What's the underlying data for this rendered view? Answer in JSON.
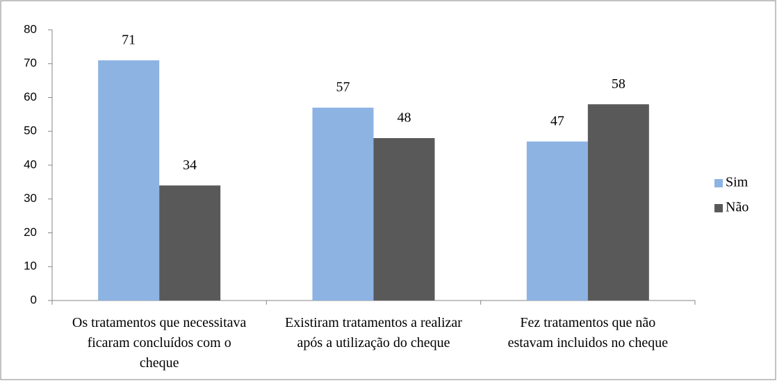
{
  "chart_data": {
    "type": "bar",
    "categories": [
      "Os tratamentos que necessitava ficaram concluídos com o cheque",
      "Existiram tratamentos a realizar após a utilização do cheque",
      "Fez tratamentos que não estavam incluidos no cheque"
    ],
    "series": [
      {
        "name": "Sim",
        "color": "#8db3e2",
        "values": [
          71,
          57,
          47
        ]
      },
      {
        "name": "Não",
        "color": "#595959",
        "values": [
          34,
          48,
          58
        ]
      }
    ],
    "ylim": [
      0,
      80
    ],
    "yticks": [
      0,
      10,
      20,
      30,
      40,
      50,
      60,
      70,
      80
    ],
    "legend": "right"
  }
}
